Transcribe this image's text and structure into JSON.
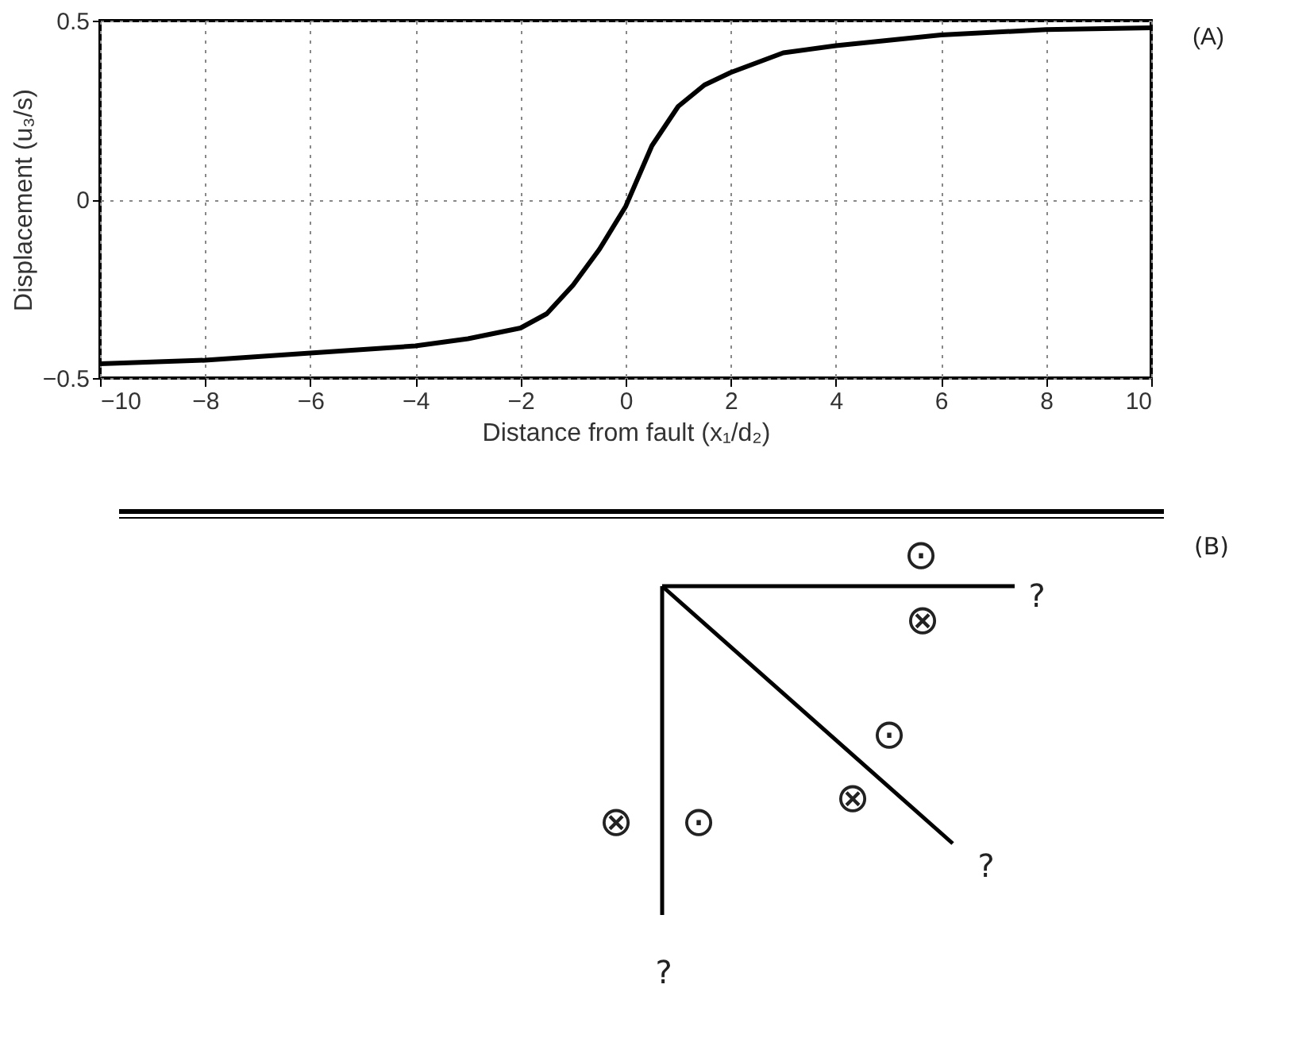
{
  "chart_data": [
    {
      "type": "line",
      "xlabel": "Distance from fault (x₁/d₂)",
      "ylabel": "Displacement (u₃/s)",
      "annotations": [
        "(A)"
      ],
      "x": [
        -10,
        -8,
        -6,
        -4,
        -3,
        -2,
        -1.5,
        -1,
        -0.5,
        0,
        0.5,
        1,
        1.5,
        2,
        3,
        4,
        6,
        8,
        10
      ],
      "series": [
        {
          "color": "#000000",
          "values": [
            -0.46,
            -0.45,
            -0.43,
            -0.41,
            -0.39,
            -0.36,
            -0.32,
            -0.24,
            -0.14,
            -0.02,
            0.15,
            0.26,
            0.32,
            0.355,
            0.41,
            0.43,
            0.46,
            0.475,
            0.48
          ]
        }
      ],
      "xlim": [
        -10,
        10
      ],
      "xticks": [
        {
          "value": -10,
          "label": "−10"
        },
        {
          "value": -8,
          "label": "−8"
        },
        {
          "value": -6,
          "label": "−6"
        },
        {
          "value": -4,
          "label": "−4"
        },
        {
          "value": -2,
          "label": "−2"
        },
        0,
        2,
        4,
        6,
        8,
        10
      ],
      "ylim": [
        -0.5,
        0.5
      ],
      "yticks": [
        {
          "value": -0.5,
          "label": "−0.5"
        },
        0,
        0.5
      ],
      "grid": true,
      "marker": "none",
      "line_style": "solid"
    },
    {
      "type": "other",
      "annotations": [
        "(B)",
        "⊙",
        "⊗",
        "⊙",
        "⊗",
        "⊗",
        "⊙",
        "?",
        "?",
        "?"
      ]
    }
  ]
}
